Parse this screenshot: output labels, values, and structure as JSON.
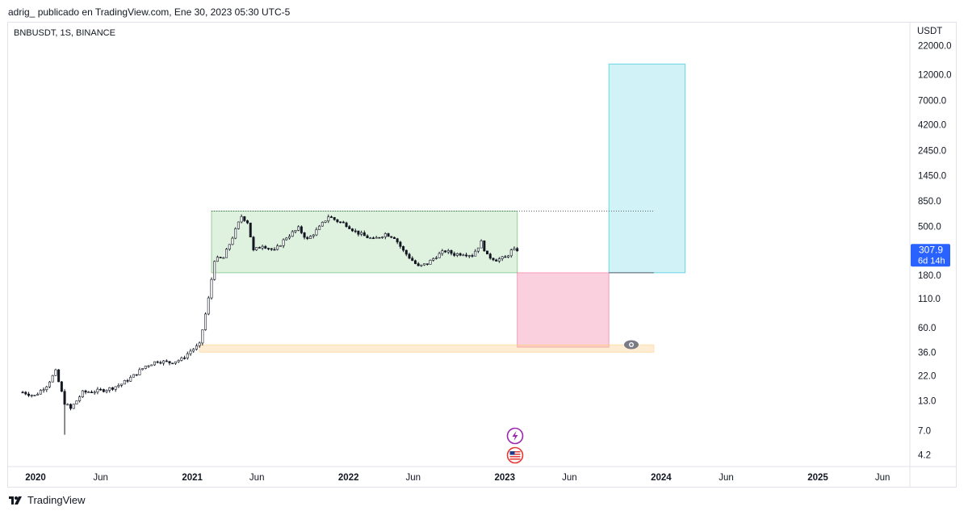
{
  "header": {
    "published_by": "adrig_ publicado en TradingView.com, Ene 30, 2023 05:30 UTC-5"
  },
  "chart_header": {
    "symbol": "BNBUSDT, 1S, BINANCE"
  },
  "footer": {
    "brand": "TradingView"
  },
  "chart_data": {
    "type": "candlestick",
    "scale": "log",
    "currency_label": "USDT",
    "y_ticks": [
      22000.0,
      12000.0,
      7000.0,
      4200.0,
      2450.0,
      1450.0,
      850.0,
      500.0,
      180.0,
      110.0,
      60.0,
      36.0,
      22.0,
      13.0,
      7.0,
      4.2
    ],
    "y_tick_labels": [
      "22000.0",
      "12000.0",
      "7000.0",
      "4200.0",
      "2450.0",
      "1450.0",
      "850.0",
      "500.0",
      "180.0",
      "110.0",
      "60.0",
      "36.0",
      "22.0",
      "13.0",
      "7.0",
      "4.2"
    ],
    "x_ticks": [
      {
        "label": "2020",
        "date": "2020-01-01",
        "major": true
      },
      {
        "label": "Jun",
        "date": "2020-06-01",
        "major": false
      },
      {
        "label": "2021",
        "date": "2021-01-01",
        "major": true
      },
      {
        "label": "Jun",
        "date": "2021-06-01",
        "major": false
      },
      {
        "label": "2022",
        "date": "2022-01-01",
        "major": true
      },
      {
        "label": "Jun",
        "date": "2022-06-01",
        "major": false
      },
      {
        "label": "2023",
        "date": "2023-01-01",
        "major": true
      },
      {
        "label": "Jun",
        "date": "2023-06-01",
        "major": false
      },
      {
        "label": "2024",
        "date": "2024-01-01",
        "major": true
      },
      {
        "label": "Jun",
        "date": "2024-06-01",
        "major": false
      },
      {
        "label": "2025",
        "date": "2025-01-01",
        "major": true
      },
      {
        "label": "Jun",
        "date": "2025-06-01",
        "major": false
      }
    ],
    "last_price": {
      "value": 307.9,
      "label": "307.9",
      "countdown": "6d 14h"
    },
    "closes": [
      {
        "date": "2019-12-02",
        "value": 15.6
      },
      {
        "date": "2019-12-30",
        "value": 14.5
      },
      {
        "date": "2020-01-27",
        "value": 18.0
      },
      {
        "date": "2020-02-17",
        "value": 24.0
      },
      {
        "date": "2020-03-09",
        "value": 12.5
      },
      {
        "date": "2020-03-23",
        "value": 11.0
      },
      {
        "date": "2020-04-20",
        "value": 15.5
      },
      {
        "date": "2020-05-25",
        "value": 16.0
      },
      {
        "date": "2020-06-22",
        "value": 16.8
      },
      {
        "date": "2020-07-20",
        "value": 18.5
      },
      {
        "date": "2020-08-17",
        "value": 22.0
      },
      {
        "date": "2020-09-14",
        "value": 27.0
      },
      {
        "date": "2020-10-12",
        "value": 30.0
      },
      {
        "date": "2020-11-09",
        "value": 29.0
      },
      {
        "date": "2020-12-07",
        "value": 31.0
      },
      {
        "date": "2020-12-28",
        "value": 37.0
      },
      {
        "date": "2021-01-18",
        "value": 42.0
      },
      {
        "date": "2021-02-08",
        "value": 110.0
      },
      {
        "date": "2021-02-22",
        "value": 250.0
      },
      {
        "date": "2021-03-15",
        "value": 260.0
      },
      {
        "date": "2021-04-05",
        "value": 400.0
      },
      {
        "date": "2021-04-26",
        "value": 620.0
      },
      {
        "date": "2021-05-10",
        "value": 550.0
      },
      {
        "date": "2021-05-24",
        "value": 300.0
      },
      {
        "date": "2021-06-14",
        "value": 340.0
      },
      {
        "date": "2021-07-12",
        "value": 300.0
      },
      {
        "date": "2021-08-09",
        "value": 400.0
      },
      {
        "date": "2021-09-06",
        "value": 480.0
      },
      {
        "date": "2021-09-27",
        "value": 380.0
      },
      {
        "date": "2021-10-25",
        "value": 490.0
      },
      {
        "date": "2021-11-15",
        "value": 620.0
      },
      {
        "date": "2021-12-06",
        "value": 560.0
      },
      {
        "date": "2021-12-27",
        "value": 520.0
      },
      {
        "date": "2022-01-17",
        "value": 450.0
      },
      {
        "date": "2022-02-07",
        "value": 410.0
      },
      {
        "date": "2022-02-28",
        "value": 380.0
      },
      {
        "date": "2022-03-28",
        "value": 430.0
      },
      {
        "date": "2022-04-18",
        "value": 400.0
      },
      {
        "date": "2022-05-09",
        "value": 300.0
      },
      {
        "date": "2022-06-13",
        "value": 215.0
      },
      {
        "date": "2022-07-04",
        "value": 230.0
      },
      {
        "date": "2022-07-25",
        "value": 270.0
      },
      {
        "date": "2022-08-15",
        "value": 300.0
      },
      {
        "date": "2022-09-05",
        "value": 280.0
      },
      {
        "date": "2022-09-26",
        "value": 285.0
      },
      {
        "date": "2022-10-17",
        "value": 275.0
      },
      {
        "date": "2022-11-07",
        "value": 360.0
      },
      {
        "date": "2022-11-21",
        "value": 270.0
      },
      {
        "date": "2022-12-12",
        "value": 250.0
      },
      {
        "date": "2023-01-02",
        "value": 260.0
      },
      {
        "date": "2023-01-16",
        "value": 300.0
      },
      {
        "date": "2023-01-30",
        "value": 307.9
      }
    ],
    "zones": [
      {
        "name": "range-box",
        "color": "#4caf50",
        "opacity": 0.18,
        "date_start": "2021-02-15",
        "date_end": "2023-01-30",
        "price_low": 190.0,
        "price_high": 690.0
      },
      {
        "name": "target-box",
        "color": "#00bcd4",
        "opacity": 0.18,
        "date_start": "2023-09-01",
        "date_end": "2024-02-26",
        "price_low": 190.0,
        "price_high": 15000.0
      },
      {
        "name": "stop-box",
        "color": "#f06292",
        "opacity": 0.3,
        "date_start": "2023-01-30",
        "date_end": "2023-09-01",
        "price_low": 40.0,
        "price_high": 190.0
      },
      {
        "name": "demand-zone",
        "color": "#ffcc80",
        "opacity": 0.35,
        "date_start": "2021-01-18",
        "date_end": "2023-12-15",
        "price_low": 36.0,
        "price_high": 42.0
      }
    ],
    "reference_lines": [
      {
        "name": "high-level-dotted-line",
        "style": "dotted",
        "price": 690.0,
        "date_start": "2021-02-15",
        "date_end": "2023-12-15"
      },
      {
        "name": "range-low-line",
        "style": "solid",
        "price": 190.0,
        "date_start": "2023-09-01",
        "date_end": "2023-12-15"
      }
    ],
    "grid": false,
    "legend": "none"
  }
}
